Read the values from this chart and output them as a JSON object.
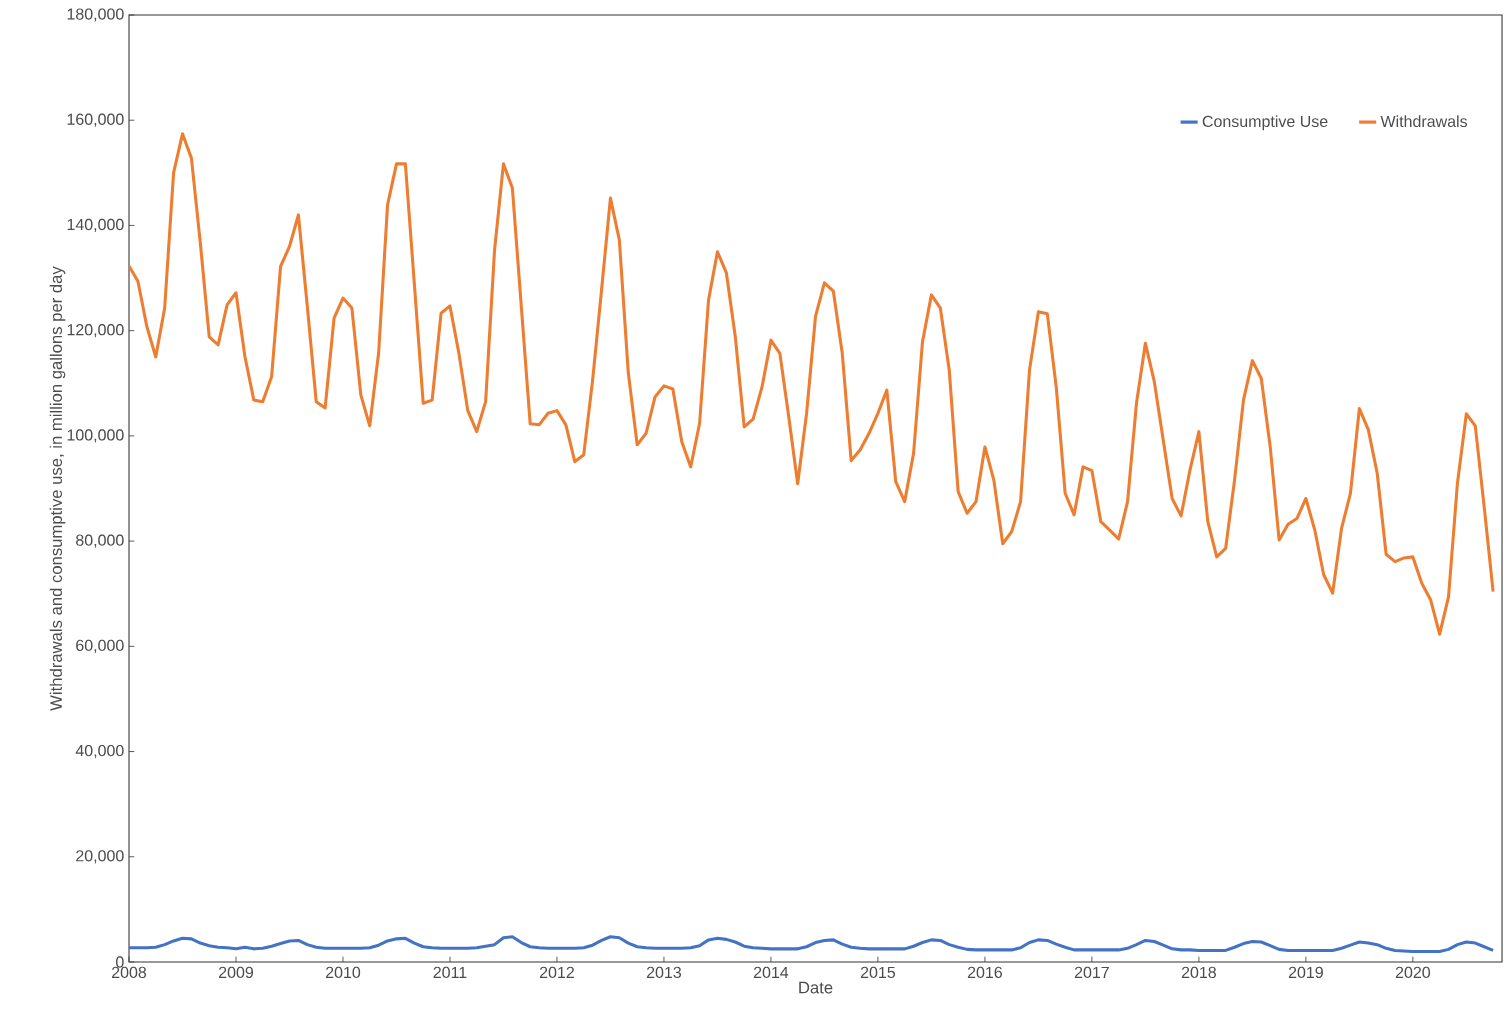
{
  "chart_data": {
    "type": "line",
    "xlabel": "Date",
    "ylabel": "Withdrawals and consumptive use, in million gallons per day",
    "x": [
      "2008-01",
      "2008-02",
      "2008-03",
      "2008-04",
      "2008-05",
      "2008-06",
      "2008-07",
      "2008-08",
      "2008-09",
      "2008-10",
      "2008-11",
      "2008-12",
      "2009-01",
      "2009-02",
      "2009-03",
      "2009-04",
      "2009-05",
      "2009-06",
      "2009-07",
      "2009-08",
      "2009-09",
      "2009-10",
      "2009-11",
      "2009-12",
      "2010-01",
      "2010-02",
      "2010-03",
      "2010-04",
      "2010-05",
      "2010-06",
      "2010-07",
      "2010-08",
      "2010-09",
      "2010-10",
      "2010-11",
      "2010-12",
      "2011-01",
      "2011-02",
      "2011-03",
      "2011-04",
      "2011-05",
      "2011-06",
      "2011-07",
      "2011-08",
      "2011-09",
      "2011-10",
      "2011-11",
      "2011-12",
      "2012-01",
      "2012-02",
      "2012-03",
      "2012-04",
      "2012-05",
      "2012-06",
      "2012-07",
      "2012-08",
      "2012-09",
      "2012-10",
      "2012-11",
      "2012-12",
      "2013-01",
      "2013-02",
      "2013-03",
      "2013-04",
      "2013-05",
      "2013-06",
      "2013-07",
      "2013-08",
      "2013-09",
      "2013-10",
      "2013-11",
      "2013-12",
      "2014-01",
      "2014-02",
      "2014-03",
      "2014-04",
      "2014-05",
      "2014-06",
      "2014-07",
      "2014-08",
      "2014-09",
      "2014-10",
      "2014-11",
      "2014-12",
      "2015-01",
      "2015-02",
      "2015-03",
      "2015-04",
      "2015-05",
      "2015-06",
      "2015-07",
      "2015-08",
      "2015-09",
      "2015-10",
      "2015-11",
      "2015-12",
      "2016-01",
      "2016-02",
      "2016-03",
      "2016-04",
      "2016-05",
      "2016-06",
      "2016-07",
      "2016-08",
      "2016-09",
      "2016-10",
      "2016-11",
      "2016-12",
      "2017-01",
      "2017-02",
      "2017-03",
      "2017-04",
      "2017-05",
      "2017-06",
      "2017-07",
      "2017-08",
      "2017-09",
      "2017-10",
      "2017-11",
      "2017-12",
      "2018-01",
      "2018-02",
      "2018-03",
      "2018-04",
      "2018-05",
      "2018-06",
      "2018-07",
      "2018-08",
      "2018-09",
      "2018-10",
      "2018-11",
      "2018-12",
      "2019-01",
      "2019-02",
      "2019-03",
      "2019-04",
      "2019-05",
      "2019-06",
      "2019-07",
      "2019-08",
      "2019-09",
      "2019-10",
      "2019-11",
      "2019-12",
      "2020-01",
      "2020-02",
      "2020-03",
      "2020-04",
      "2020-05",
      "2020-06",
      "2020-07",
      "2020-08",
      "2020-09",
      "2020-10"
    ],
    "series": [
      {
        "name": "Consumptive Use",
        "color": "#4472c4",
        "values": [
          2700,
          2700,
          2700,
          2800,
          3300,
          4000,
          4500,
          4400,
          3600,
          3100,
          2800,
          2700,
          2500,
          2800,
          2500,
          2600,
          3000,
          3500,
          4000,
          4100,
          3300,
          2800,
          2600,
          2600,
          2600,
          2600,
          2600,
          2700,
          3200,
          4000,
          4400,
          4500,
          3600,
          2900,
          2700,
          2600,
          2600,
          2600,
          2600,
          2700,
          3000,
          3300,
          4600,
          4800,
          3700,
          2900,
          2700,
          2600,
          2600,
          2600,
          2600,
          2700,
          3200,
          4100,
          4800,
          4600,
          3600,
          2900,
          2700,
          2600,
          2600,
          2600,
          2600,
          2700,
          3100,
          4200,
          4500,
          4300,
          3800,
          3000,
          2700,
          2600,
          2500,
          2500,
          2500,
          2500,
          2900,
          3700,
          4100,
          4200,
          3400,
          2800,
          2600,
          2500,
          2500,
          2500,
          2500,
          2500,
          3000,
          3700,
          4200,
          4100,
          3300,
          2800,
          2400,
          2300,
          2300,
          2300,
          2300,
          2300,
          2700,
          3700,
          4200,
          4100,
          3400,
          2800,
          2300,
          2300,
          2300,
          2300,
          2300,
          2300,
          2600,
          3300,
          4100,
          3900,
          3200,
          2500,
          2300,
          2300,
          2200,
          2200,
          2200,
          2200,
          2800,
          3500,
          3900,
          3800,
          3100,
          2400,
          2200,
          2200,
          2200,
          2200,
          2200,
          2200,
          2600,
          3200,
          3800,
          3600,
          3300,
          2600,
          2200,
          2100,
          2000,
          2000,
          2000,
          2000,
          2400,
          3300,
          3800,
          3600,
          2900,
          2200
        ]
      },
      {
        "name": "Withdrawals",
        "color": "#ed7d31",
        "values": [
          132300,
          129400,
          120800,
          115000,
          124300,
          150000,
          157400,
          152800,
          136700,
          118800,
          117300,
          124900,
          127200,
          115100,
          106800,
          106500,
          111300,
          132200,
          136000,
          142000,
          124600,
          106500,
          105300,
          122400,
          126200,
          124300,
          107800,
          101900,
          115800,
          143900,
          151700,
          151700,
          129000,
          106200,
          106800,
          123300,
          124700,
          115700,
          104800,
          100800,
          106500,
          135300,
          151700,
          147100,
          124600,
          102300,
          102100,
          104300,
          104800,
          102100,
          95100,
          96400,
          110600,
          127700,
          145200,
          137200,
          112000,
          98300,
          100500,
          107400,
          109500,
          108900,
          98900,
          94100,
          102400,
          125800,
          135000,
          131000,
          118900,
          101700,
          103200,
          109300,
          118200,
          115700,
          103600,
          90900,
          104300,
          122700,
          129100,
          127500,
          115700,
          95300,
          97300,
          100500,
          104300,
          108700,
          91300,
          87500,
          96700,
          117900,
          126800,
          124300,
          112500,
          89400,
          85300,
          87500,
          97900,
          91600,
          79500,
          81800,
          87500,
          112500,
          123600,
          123200,
          109300,
          89100,
          85000,
          94100,
          93400,
          83700,
          82100,
          80400,
          87500,
          106200,
          117600,
          110300,
          99200,
          88100,
          84800,
          93500,
          100800,
          83700,
          77000,
          78600,
          91600,
          106800,
          114300,
          110900,
          97900,
          80200,
          83200,
          84300,
          88100,
          82100,
          73600,
          70100,
          82400,
          89100,
          105200,
          101200,
          92900,
          77500,
          76100,
          76800,
          77000,
          72000,
          68800,
          62300,
          69400,
          91000,
          104200,
          101900,
          86500,
          70400
        ]
      }
    ],
    "xlim": [
      "2008-01",
      "2020-11"
    ],
    "xticks": [
      "2008",
      "2009",
      "2010",
      "2011",
      "2012",
      "2013",
      "2014",
      "2015",
      "2016",
      "2017",
      "2018",
      "2019",
      "2020"
    ],
    "ylim": [
      0,
      180000
    ],
    "yticks": [
      {
        "value": 0,
        "label": "0"
      },
      {
        "value": 20000,
        "label": "20,000"
      },
      {
        "value": 40000,
        "label": "40,000"
      },
      {
        "value": 60000,
        "label": "60,000"
      },
      {
        "value": 80000,
        "label": "80,000"
      },
      {
        "value": 100000,
        "label": "100,000"
      },
      {
        "value": 120000,
        "label": "120,000"
      },
      {
        "value": 140000,
        "label": "140,000"
      },
      {
        "value": 160000,
        "label": "160,000"
      },
      {
        "value": 180000,
        "label": "180,000"
      }
    ],
    "legend": "top right"
  }
}
